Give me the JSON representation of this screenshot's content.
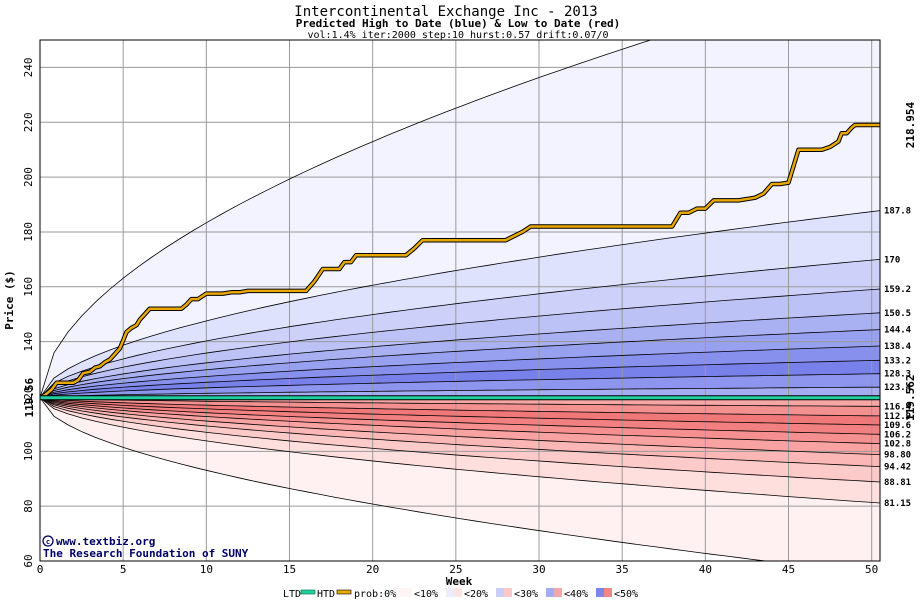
{
  "chart_data": {
    "type": "area",
    "title": "Intercontinental Exchange Inc - 2013",
    "subtitle": "Predicted High to Date (blue) &  Low to Date (red)",
    "params": "vol:1.4% iter:2000 step:10 hurst:0.57 drift:0.07/0",
    "xlabel": "Week",
    "ylabel": "Price ($)",
    "xlim": [
      0,
      50.5
    ],
    "ylim": [
      60,
      250
    ],
    "x_ticks": [
      0,
      5,
      10,
      15,
      20,
      25,
      30,
      35,
      40,
      45,
      50
    ],
    "y_ticks": [
      60,
      80,
      100,
      120,
      140,
      160,
      180,
      200,
      220,
      240
    ],
    "grid": true,
    "start_price": 119.56,
    "start_label": "119.56",
    "htd_label": "218.954",
    "htd_color": "#b8860b",
    "ltd_label": "119.562",
    "ltd_color": "#008060",
    "upper_band_ends": [
      {
        "value": 123.4,
        "label": "123.4"
      },
      {
        "value": 128.3,
        "label": "128.3"
      },
      {
        "value": 133.2,
        "label": "133.2"
      },
      {
        "value": 138.4,
        "label": "138.4"
      },
      {
        "value": 144.4,
        "label": "144.4"
      },
      {
        "value": 150.5,
        "label": "150.5"
      },
      {
        "value": 159.2,
        "label": "159.2"
      },
      {
        "value": 170,
        "label": "170"
      },
      {
        "value": 187.8,
        "label": "187.8"
      },
      {
        "value": 275,
        "label": ""
      }
    ],
    "lower_band_ends": [
      {
        "value": 116.4,
        "label": "116.4"
      },
      {
        "value": 112.9,
        "label": "112.9"
      },
      {
        "value": 109.6,
        "label": "109.6"
      },
      {
        "value": 106.2,
        "label": "106.2"
      },
      {
        "value": 102.8,
        "label": "102.8"
      },
      {
        "value": 98.8,
        "label": "98.80"
      },
      {
        "value": 94.42,
        "label": "94.42"
      },
      {
        "value": 88.81,
        "label": "88.81"
      },
      {
        "value": 81.15,
        "label": "81.15"
      },
      {
        "value": 55,
        "label": ""
      }
    ],
    "series": [
      {
        "name": "HTD",
        "color": "#e8a800",
        "x": [
          0,
          0.3,
          0.7,
          1.0,
          1.5,
          2.0,
          2.3,
          2.6,
          3.0,
          3.3,
          3.6,
          3.9,
          4.2,
          4.5,
          4.8,
          5.0,
          5.2,
          5.5,
          5.8,
          6.0,
          6.3,
          6.6,
          7.0,
          8.0,
          8.5,
          8.8,
          9.1,
          9.5,
          10.0,
          10.3,
          11.0,
          11.5,
          12.0,
          12.5,
          13.0,
          14.0,
          15.0,
          16.0,
          16.5,
          17.0,
          17.2,
          18.0,
          18.3,
          18.7,
          19.0,
          19.5,
          20.0,
          20.5,
          21.0,
          22.0,
          22.5,
          23.0,
          24.0,
          25.0,
          26.0,
          27.0,
          28.0,
          29.0,
          29.5,
          30.0,
          32.0,
          35.0,
          38.0,
          38.5,
          39.0,
          39.5,
          40.0,
          40.5,
          41.0,
          42.0,
          43.0,
          43.5,
          44.0,
          44.5,
          45.0,
          45.3,
          45.6,
          46.0,
          46.5,
          47.0,
          47.5,
          48.0,
          48.2,
          48.5,
          48.8,
          49.0,
          49.5,
          50.0,
          50.5
        ],
        "y": [
          119.56,
          120.5,
          122.5,
          125.0,
          125.0,
          125.0,
          126.0,
          128.5,
          129.0,
          130.5,
          131.0,
          132.5,
          133.5,
          135.5,
          137.5,
          140.5,
          143.5,
          145.0,
          146.0,
          148.0,
          150.0,
          152.0,
          152.0,
          152.0,
          152.0,
          153.5,
          155.5,
          155.5,
          157.5,
          157.5,
          157.5,
          158.0,
          158.0,
          158.5,
          158.5,
          158.5,
          158.5,
          158.5,
          162.0,
          166.5,
          166.5,
          166.5,
          169.0,
          169.0,
          171.5,
          171.5,
          171.5,
          171.5,
          171.5,
          171.5,
          174.0,
          177.0,
          177.0,
          177.0,
          177.0,
          177.0,
          177.0,
          180.0,
          182.0,
          182.0,
          182.0,
          182.0,
          182.0,
          187.0,
          187.0,
          188.5,
          188.5,
          191.5,
          191.5,
          191.5,
          192.5,
          194.0,
          197.5,
          197.5,
          198.0,
          204.0,
          210.0,
          210.0,
          210.0,
          210.0,
          211.0,
          213.0,
          216.0,
          216.0,
          218.0,
          219.0,
          219.0,
          219.0,
          219.0
        ]
      },
      {
        "name": "LTD",
        "color": "#20d0a0",
        "x": [
          0,
          50.5
        ],
        "y": [
          119.56,
          119.56
        ]
      }
    ],
    "legend": {
      "placement": "bottom",
      "ltd": "LTD",
      "htd": "HTD",
      "prob": "prob:0%",
      "b10": "<10%",
      "b20": "<20%",
      "b30": "<30%",
      "b40": "<40%",
      "b50": "<50%"
    },
    "credit_line1": "www.textbiz.org",
    "credit_line2": "The Research Foundation of SUNY"
  }
}
